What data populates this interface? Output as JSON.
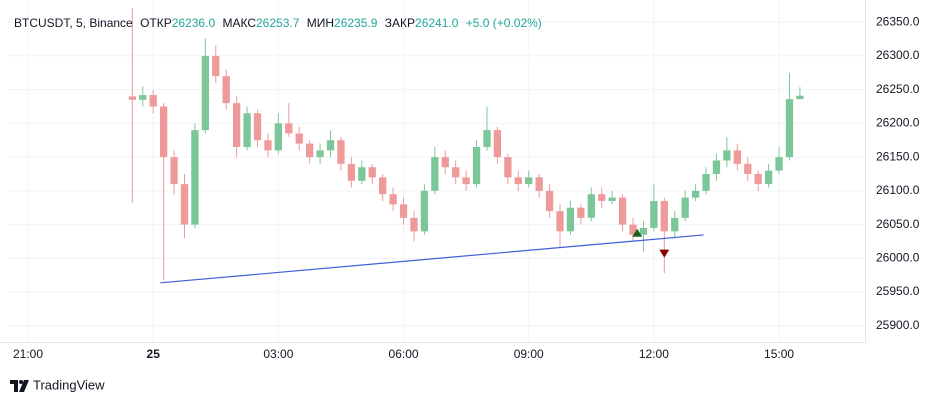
{
  "chart_data": {
    "type": "candlestick",
    "header": {
      "symbol": "BTCUSDT, 5, Binance",
      "open_label": "ОТКР",
      "open": "26236.0",
      "high_label": "МАКС",
      "high": "26253.7",
      "low_label": "МИН",
      "low": "26235.9",
      "close_label": "ЗАКР",
      "close": "26241.0",
      "change": "+5.0 (+0.02%)",
      "value_color": "#26a69a"
    },
    "up_color": "#7cc79a",
    "down_color": "#ef9a9a",
    "x": [
      23.5,
      23.75,
      24,
      24.25,
      24.5,
      24.75,
      25,
      25.25,
      25.5,
      25.75,
      26,
      26.25,
      26.5,
      26.75,
      27,
      27.25,
      27.5,
      27.75,
      28,
      28.25,
      28.5,
      28.75,
      29,
      29.25,
      29.5,
      29.75,
      30,
      30.25,
      30.5,
      30.75,
      31,
      31.25,
      31.5,
      31.75,
      32,
      32.25,
      32.5,
      32.75,
      33,
      33.25,
      33.5,
      33.75,
      34,
      34.25,
      34.5,
      34.75,
      35,
      35.25,
      35.5,
      35.75,
      36,
      36.25,
      36.5,
      36.75,
      37,
      37.25,
      37.5,
      37.75,
      38,
      38.25,
      38.5,
      38.75,
      39,
      39.25,
      39.5
    ],
    "candles": [
      [
        26240,
        26371,
        26082,
        26235
      ],
      [
        26235,
        26255,
        26225,
        26242
      ],
      [
        26242,
        26250,
        26215,
        26225
      ],
      [
        26225,
        26230,
        25968,
        26150
      ],
      [
        26150,
        26160,
        26095,
        26110
      ],
      [
        26110,
        26125,
        26030,
        26050
      ],
      [
        26050,
        26200,
        26045,
        26190
      ],
      [
        26190,
        26326,
        26185,
        26300
      ],
      [
        26300,
        26315,
        26260,
        26270
      ],
      [
        26270,
        26280,
        26220,
        26230
      ],
      [
        26230,
        26240,
        26150,
        26165
      ],
      [
        26165,
        26225,
        26160,
        26215
      ],
      [
        26215,
        26220,
        26165,
        26175
      ],
      [
        26175,
        26185,
        26150,
        26160
      ],
      [
        26160,
        26215,
        26155,
        26200
      ],
      [
        26200,
        26230,
        26180,
        26185
      ],
      [
        26185,
        26195,
        26160,
        26170
      ],
      [
        26170,
        26175,
        26140,
        26150
      ],
      [
        26150,
        26170,
        26140,
        26160
      ],
      [
        26160,
        26190,
        26150,
        26175
      ],
      [
        26175,
        26180,
        26130,
        26140
      ],
      [
        26140,
        26150,
        26105,
        26115
      ],
      [
        26115,
        26145,
        26110,
        26135
      ],
      [
        26135,
        26140,
        26110,
        26120
      ],
      [
        26120,
        26125,
        26085,
        26095
      ],
      [
        26095,
        26105,
        26070,
        26080
      ],
      [
        26080,
        26090,
        26050,
        26060
      ],
      [
        26060,
        26070,
        26025,
        26040
      ],
      [
        26040,
        26110,
        26035,
        26100
      ],
      [
        26100,
        26165,
        26095,
        26150
      ],
      [
        26150,
        26160,
        26125,
        26135
      ],
      [
        26135,
        26145,
        26110,
        26120
      ],
      [
        26120,
        26130,
        26100,
        26110
      ],
      [
        26110,
        26175,
        26105,
        26165
      ],
      [
        26165,
        26225,
        26160,
        26190
      ],
      [
        26190,
        26195,
        26140,
        26150
      ],
      [
        26150,
        26155,
        26110,
        26120
      ],
      [
        26120,
        26130,
        26100,
        26110
      ],
      [
        26110,
        26130,
        26105,
        26120
      ],
      [
        26120,
        26125,
        26090,
        26100
      ],
      [
        26100,
        26110,
        26060,
        26070
      ],
      [
        26070,
        26080,
        26015,
        26040
      ],
      [
        26040,
        26085,
        26035,
        26075
      ],
      [
        26075,
        26080,
        26050,
        26060
      ],
      [
        26060,
        26105,
        26055,
        26095
      ],
      [
        26095,
        26105,
        26075,
        26085
      ],
      [
        26085,
        26100,
        26080,
        26090
      ],
      [
        26090,
        26095,
        26040,
        26050
      ],
      [
        26050,
        26060,
        26025,
        26035
      ],
      [
        26035,
        26055,
        26010,
        26045
      ],
      [
        26045,
        26110,
        26040,
        26085
      ],
      [
        26085,
        26090,
        25978,
        26040
      ],
      [
        26040,
        26070,
        26030,
        26060
      ],
      [
        26060,
        26100,
        26055,
        26090
      ],
      [
        26090,
        26110,
        26085,
        26100
      ],
      [
        26100,
        26135,
        26095,
        26125
      ],
      [
        26125,
        26155,
        26115,
        26145
      ],
      [
        26145,
        26180,
        26135,
        26160
      ],
      [
        26160,
        26170,
        26130,
        26140
      ],
      [
        26140,
        26150,
        26115,
        26125
      ],
      [
        26125,
        26130,
        26100,
        26110
      ],
      [
        26110,
        26140,
        26105,
        26130
      ],
      [
        26130,
        26165,
        26125,
        26150
      ],
      [
        26150,
        26275,
        26145,
        26236
      ],
      [
        26236,
        26253.7,
        26235.9,
        26241
      ]
    ],
    "trendline": {
      "x": [
        24.17,
        37.19
      ],
      "y": [
        25963.7,
        26034.7
      ],
      "color": "#3f5fd8"
    },
    "markers": [
      {
        "x": 35.6,
        "y": 26035,
        "direction": "up",
        "color": "#1b5e20"
      },
      {
        "x": 36.25,
        "y": 26010,
        "direction": "down",
        "color": "#8b0000"
      }
    ],
    "xlim": [
      20.52,
      41.06
    ],
    "ylim": [
      25876,
      26371
    ],
    "xticks": [
      {
        "value": 21,
        "label": "21:00"
      },
      {
        "value": 24,
        "label": "25"
      },
      {
        "value": 27,
        "label": "03:00"
      },
      {
        "value": 30,
        "label": "06:00"
      },
      {
        "value": 33,
        "label": "09:00"
      },
      {
        "value": 36,
        "label": "12:00"
      },
      {
        "value": 39,
        "label": "15:00"
      }
    ],
    "yticks": [
      {
        "value": 25900,
        "label": "25900.0"
      },
      {
        "value": 25950,
        "label": "25950.0"
      },
      {
        "value": 26000,
        "label": "26000.0"
      },
      {
        "value": 26050,
        "label": "26050.0"
      },
      {
        "value": 26100,
        "label": "26100.0"
      },
      {
        "value": 26150,
        "label": "26150.0"
      },
      {
        "value": 26200,
        "label": "26200.0"
      },
      {
        "value": 26250,
        "label": "26250.0"
      },
      {
        "value": 26300,
        "label": "26300.0"
      },
      {
        "value": 26350,
        "label": "26350.0"
      }
    ],
    "grid": true,
    "brand": "TradingView"
  }
}
